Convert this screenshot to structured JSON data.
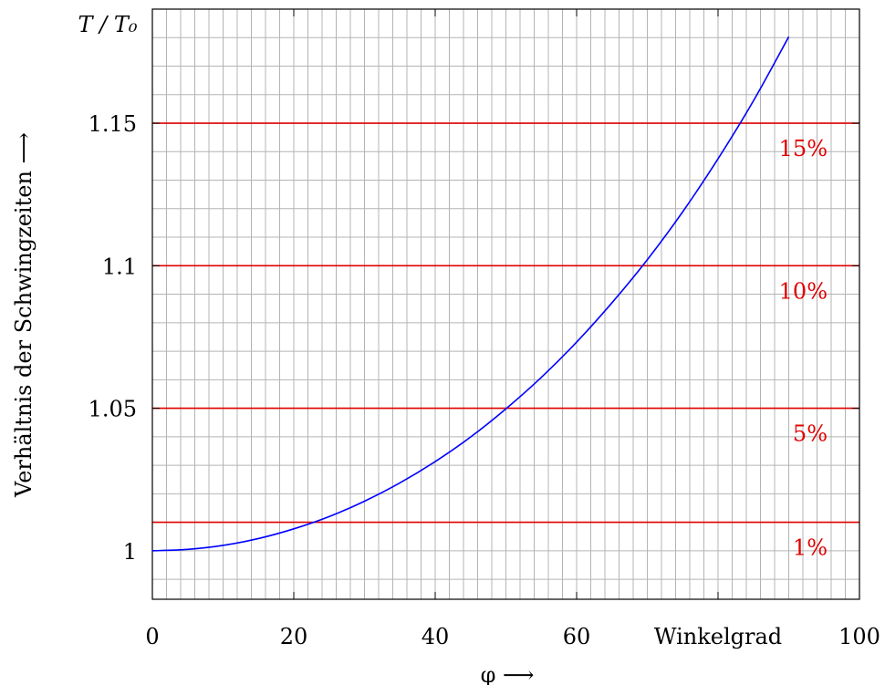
{
  "chart_data": {
    "type": "line",
    "title": "",
    "xlabel": "φ ⟶",
    "ylabel": "Verhältnis der Schwingzeiten ⟶",
    "y_unit_label": "T / T₀",
    "x_unit_label": "Winkelgrad",
    "xlim": [
      0,
      100
    ],
    "ylim": [
      0.983,
      1.19
    ],
    "x_ticks": [
      "0",
      "20",
      "40",
      "60",
      "100"
    ],
    "y_ticks": [
      "1",
      "1.05",
      "1.1",
      "1.15"
    ],
    "grid": true,
    "series": [
      {
        "color": "#0000ff",
        "x": [
          0,
          5,
          10,
          15,
          20,
          25,
          30,
          35,
          40,
          45,
          50,
          55,
          60,
          65,
          70,
          75,
          80,
          85,
          90
        ],
        "y": [
          1.0,
          1.0005,
          1.0019,
          1.0043,
          1.0077,
          1.012,
          1.0174,
          1.0238,
          1.0313,
          1.0399,
          1.0498,
          1.0608,
          1.0732,
          1.087,
          1.1021,
          1.1189,
          1.1375,
          1.1578,
          1.1803
        ]
      }
    ],
    "reference_lines": [
      {
        "y": 1.01,
        "label": "1%",
        "color": "#e00000"
      },
      {
        "y": 1.05,
        "label": "5%",
        "color": "#e00000"
      },
      {
        "y": 1.1,
        "label": "10%",
        "color": "#e00000"
      },
      {
        "y": 1.15,
        "label": "15%",
        "color": "#e00000"
      }
    ]
  }
}
